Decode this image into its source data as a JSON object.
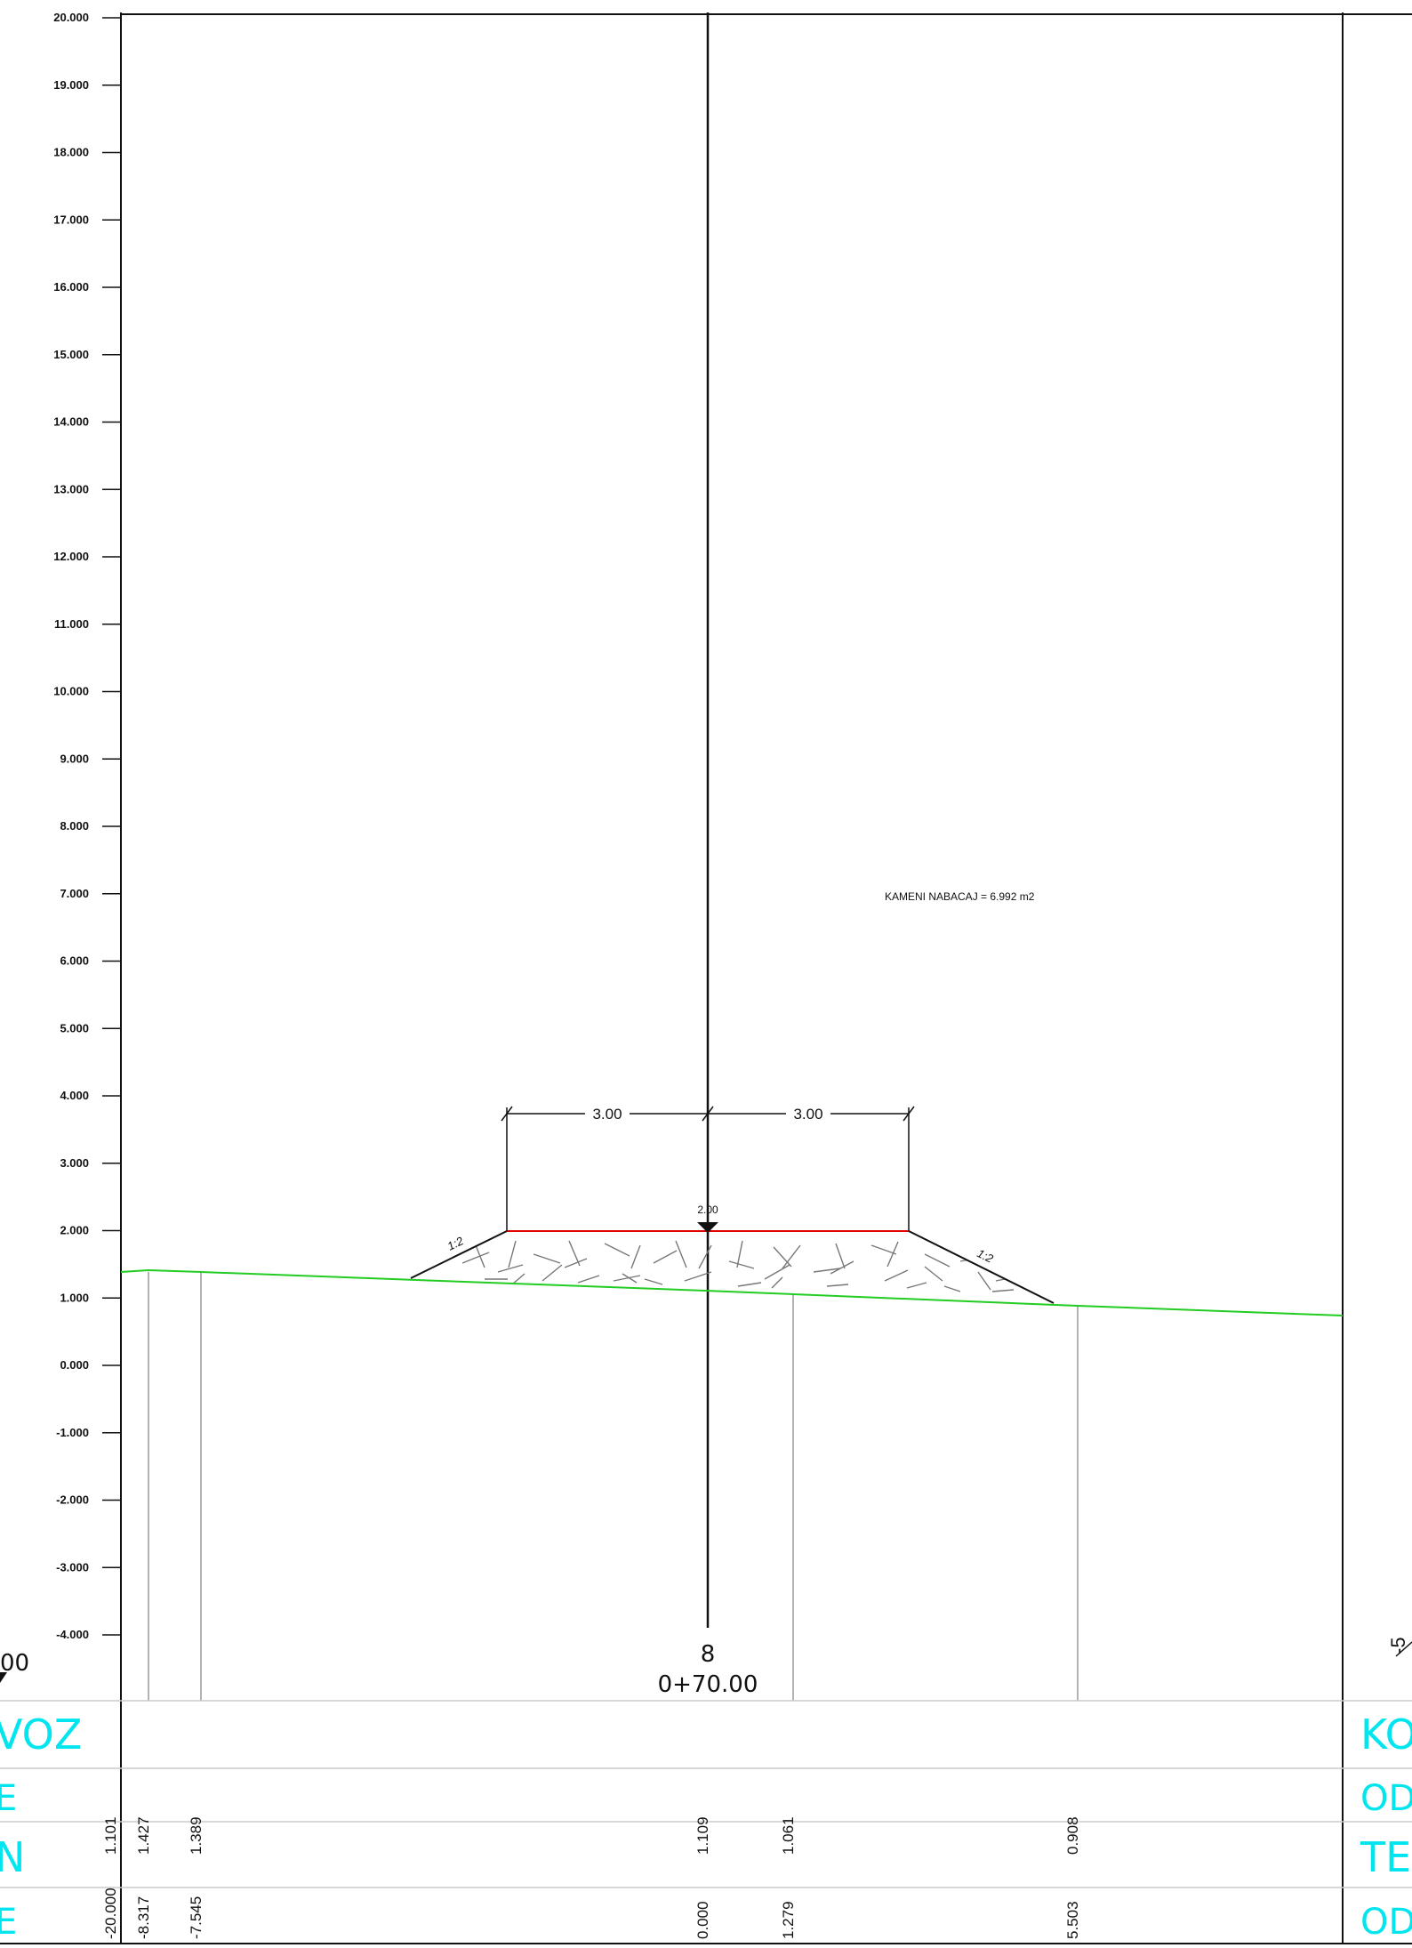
{
  "chart_data": {
    "type": "diagram",
    "elevation_ticks": [
      "20.000",
      "19.000",
      "18.000",
      "17.000",
      "16.000",
      "15.000",
      "14.000",
      "13.000",
      "12.000",
      "11.000",
      "10.000",
      "9.000",
      "8.000",
      "7.000",
      "6.000",
      "5.000",
      "4.000",
      "3.000",
      "2.000",
      "1.000",
      "0.000",
      "-1.000",
      "-2.000",
      "-3.000",
      "-4.000"
    ],
    "dimensions": {
      "left": "3.00",
      "right": "3.00"
    },
    "crest_elevation_label": "2.00",
    "slope_left": "1:2",
    "slope_right": "1:2",
    "area_annotation": "KAMENI NABACAJ = 6.992 m2",
    "station": {
      "number": "8",
      "chainage": "0+70.00"
    },
    "side_fragments": {
      "left_top": "00",
      "right_top": "-5"
    },
    "bands": {
      "left_labels": [
        "VOZ",
        "E",
        "N",
        "E"
      ],
      "right_labels": [
        "KO",
        "OD.",
        "TE",
        "OD."
      ]
    },
    "terrain_points": [
      {
        "elevation": "1.101",
        "offset": "-20.000"
      },
      {
        "elevation": "1.427",
        "offset": "-8.317"
      },
      {
        "elevation": "1.389",
        "offset": "-7.545"
      },
      {
        "elevation": "1.109",
        "offset": "0.000"
      },
      {
        "elevation": "1.061",
        "offset": "1.279"
      },
      {
        "elevation": "0.908",
        "offset": "5.503"
      }
    ]
  }
}
